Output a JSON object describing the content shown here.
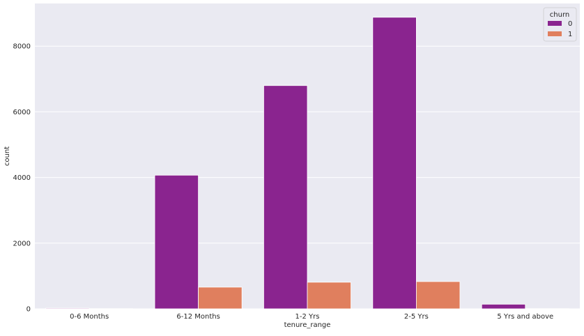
{
  "chart_data": {
    "type": "bar",
    "xlabel": "tenure_range",
    "ylabel": "count",
    "categories": [
      "0-6 Months",
      "6-12 Months",
      "1-2 Yrs",
      "2-5 Yrs",
      "5 Yrs and above"
    ],
    "series": [
      {
        "name": "0",
        "values": [
          20,
          4070,
          6800,
          8880,
          140
        ]
      },
      {
        "name": "1",
        "values": [
          5,
          660,
          810,
          830,
          5
        ]
      }
    ],
    "ylim": [
      0,
      9300
    ],
    "yticks": [
      0,
      2000,
      4000,
      6000,
      8000
    ],
    "legend": {
      "title": "churn",
      "position": "top-right"
    },
    "grid": true,
    "colors": {
      "series0": "#8a248f",
      "series1": "#e07f5e",
      "background": "#eaeaf2",
      "grid": "#ffffff"
    }
  }
}
